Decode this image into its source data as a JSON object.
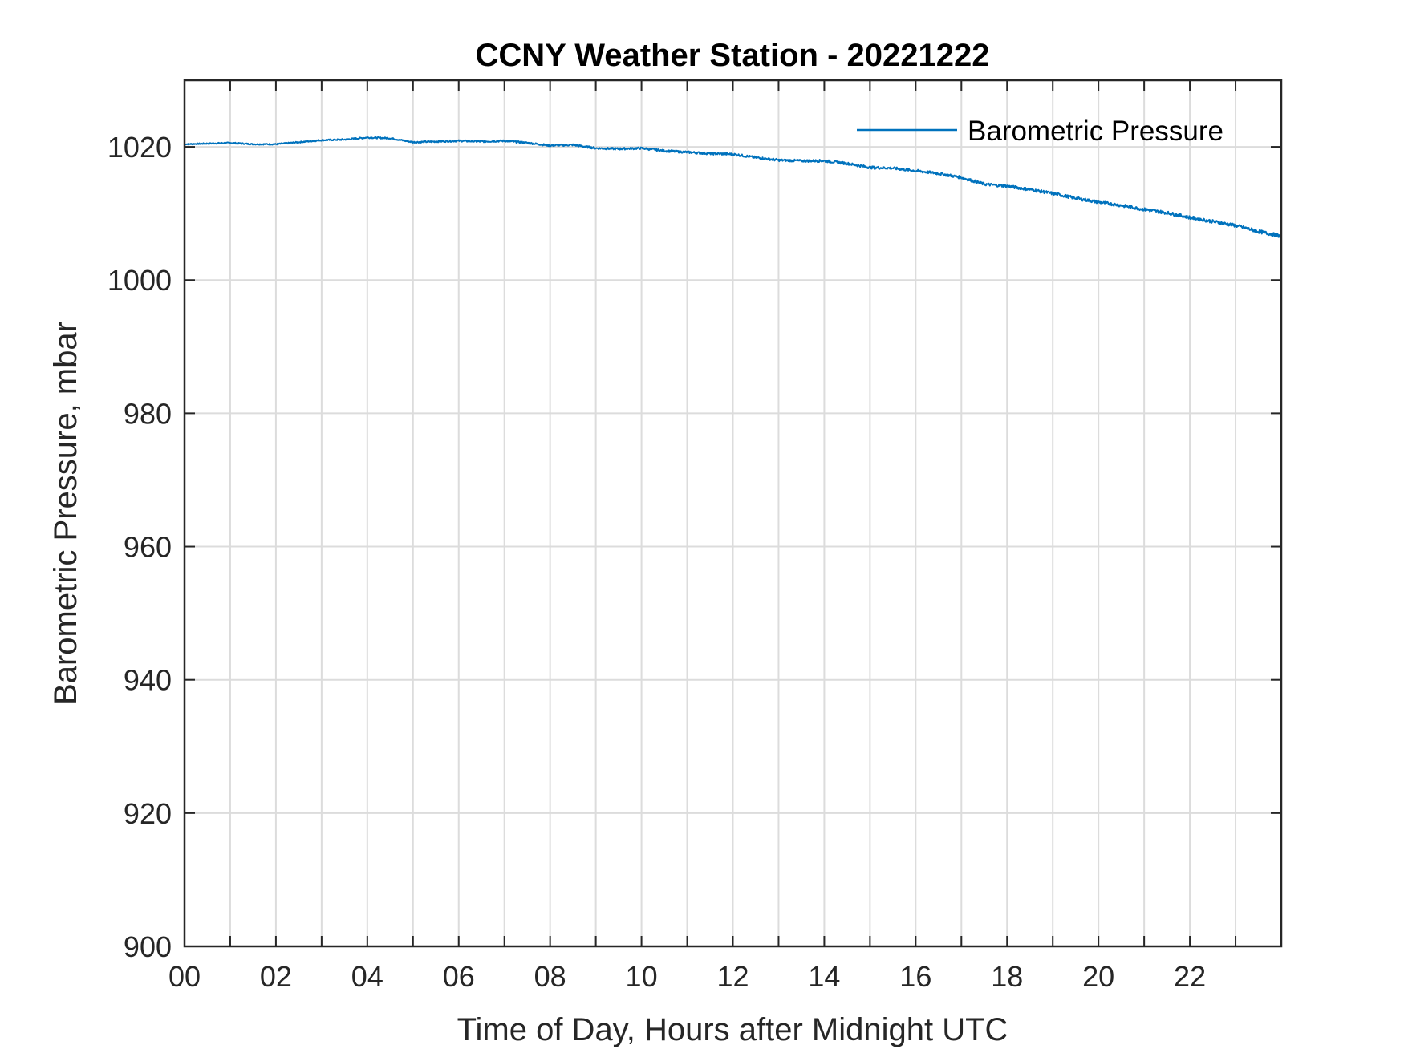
{
  "chart_data": {
    "type": "line",
    "title": "CCNY Weather Station - 20221222",
    "xlabel": "Time of Day, Hours after Midnight UTC",
    "ylabel": "Barometric Pressure, mbar",
    "xlim": [
      0,
      24
    ],
    "ylim": [
      900,
      1030
    ],
    "x_ticks": [
      0,
      2,
      4,
      6,
      8,
      10,
      12,
      14,
      16,
      18,
      20,
      22
    ],
    "x_tick_labels": [
      "00",
      "02",
      "04",
      "06",
      "08",
      "10",
      "12",
      "14",
      "16",
      "18",
      "20",
      "22"
    ],
    "x_minor_grid_step": 1,
    "y_ticks": [
      900,
      920,
      940,
      960,
      980,
      1000,
      1020
    ],
    "y_tick_labels": [
      "900",
      "920",
      "940",
      "960",
      "980",
      "1000",
      "1020"
    ],
    "grid": true,
    "legend_position": "top-right",
    "series": [
      {
        "name": "Barometric Pressure",
        "color": "#0072BD",
        "x": [
          0,
          0.5,
          1,
          1.5,
          2,
          2.5,
          3,
          3.5,
          4,
          4.5,
          5,
          5.5,
          6,
          6.5,
          7,
          7.5,
          8,
          8.5,
          9,
          9.5,
          10,
          10.5,
          11,
          11.5,
          12,
          12.5,
          13,
          13.5,
          14,
          14.5,
          15,
          15.5,
          16,
          16.5,
          17,
          17.5,
          18,
          18.5,
          19,
          19.5,
          20,
          20.5,
          21,
          21.5,
          22,
          22.5,
          23,
          23.5,
          24
        ],
        "values": [
          1020.4,
          1020.5,
          1020.6,
          1020.4,
          1020.4,
          1020.7,
          1021.0,
          1021.1,
          1021.4,
          1021.3,
          1020.7,
          1020.8,
          1020.9,
          1020.8,
          1020.9,
          1020.6,
          1020.2,
          1020.3,
          1019.8,
          1019.7,
          1019.8,
          1019.4,
          1019.2,
          1019.0,
          1018.9,
          1018.4,
          1018.0,
          1017.9,
          1017.9,
          1017.5,
          1016.9,
          1016.8,
          1016.4,
          1016.0,
          1015.4,
          1014.4,
          1014.1,
          1013.6,
          1013.0,
          1012.3,
          1011.7,
          1011.2,
          1010.6,
          1010.1,
          1009.4,
          1008.8,
          1008.2,
          1007.3,
          1006.6
        ]
      }
    ]
  }
}
